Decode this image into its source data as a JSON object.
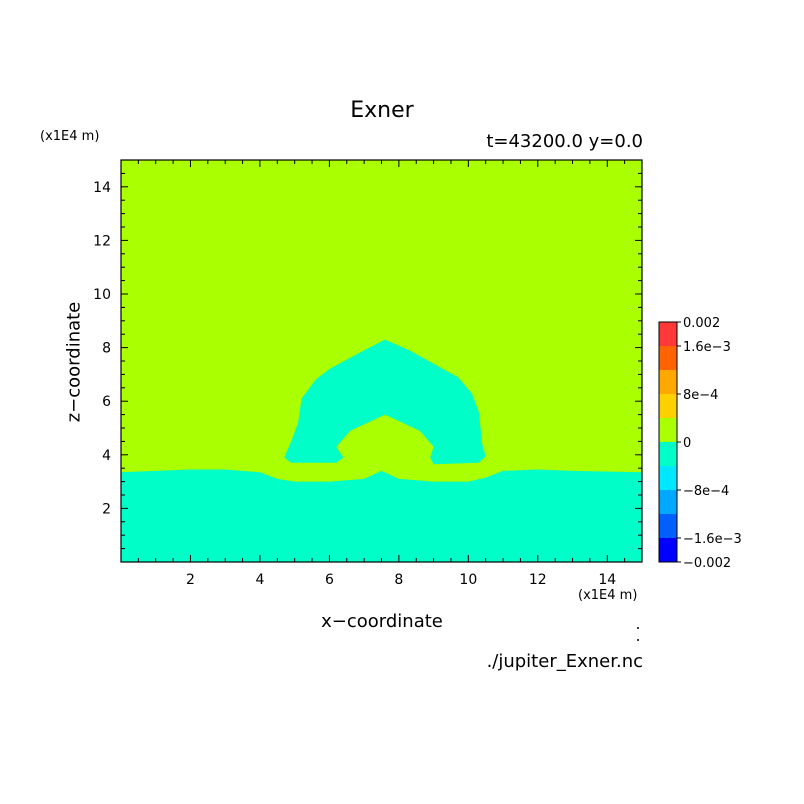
{
  "chart_data": {
    "type": "heatmap",
    "title": "Exner",
    "info": "t=43200.0  y=0.0",
    "xlabel": "x−coordinate",
    "ylabel": "z−coordinate",
    "x_unit": "(x1E4 m)",
    "y_unit": "(x1E4 m)",
    "footer": "./jupiter_Exner.nc",
    "xlim": [
      0,
      15
    ],
    "ylim": [
      0,
      15
    ],
    "xticks": [
      "2",
      "4",
      "6",
      "8",
      "10",
      "12",
      "14"
    ],
    "yticks": [
      "2",
      "4",
      "6",
      "8",
      "10",
      "12",
      "14"
    ],
    "colorbar": {
      "levels": [
        -0.002,
        -0.0016,
        -0.0012,
        -0.0008,
        -0.0004,
        0,
        0.0004,
        0.0008,
        0.0012,
        0.0016,
        0.002
      ],
      "colors": [
        "#0000a8",
        "#0000ff",
        "#0060ff",
        "#00a8ff",
        "#00e8ff",
        "#00ffc8",
        "#aaff00",
        "#ffd000",
        "#ffa800",
        "#ff6400",
        "#ff3838"
      ],
      "labels": [
        {
          "value": 0.002,
          "text": "0.002"
        },
        {
          "value": 0.0016,
          "text": "1.6e−3"
        },
        {
          "value": 0.0008,
          "text": "8e−4"
        },
        {
          "value": 0,
          "text": "0"
        },
        {
          "value": -0.0008,
          "text": "−8e−4"
        },
        {
          "value": -0.0016,
          "text": "−1.6e−3"
        },
        {
          "value": -0.002,
          "text": "−0.002"
        }
      ]
    },
    "field": {
      "background_color": "#aaff00",
      "region_color": "#00ffc8",
      "lower_layer_top": [
        [
          0,
          3.35
        ],
        [
          2,
          3.45
        ],
        [
          3,
          3.45
        ],
        [
          4,
          3.35
        ],
        [
          4.5,
          3.1
        ],
        [
          5,
          3.0
        ],
        [
          6,
          3.0
        ],
        [
          7,
          3.1
        ],
        [
          7.5,
          3.4
        ],
        [
          8,
          3.1
        ],
        [
          9,
          3.0
        ],
        [
          10,
          3.0
        ],
        [
          10.5,
          3.15
        ],
        [
          11,
          3.4
        ],
        [
          12,
          3.45
        ],
        [
          13,
          3.4
        ],
        [
          15,
          3.35
        ]
      ],
      "bubble_outline": [
        [
          4.7,
          3.9
        ],
        [
          4.9,
          4.5
        ],
        [
          5.1,
          5.2
        ],
        [
          5.2,
          6.1
        ],
        [
          5.6,
          6.8
        ],
        [
          6.0,
          7.2
        ],
        [
          7.0,
          7.9
        ],
        [
          7.6,
          8.3
        ],
        [
          8.3,
          7.9
        ],
        [
          9.0,
          7.4
        ],
        [
          9.7,
          6.9
        ],
        [
          10.1,
          6.3
        ],
        [
          10.3,
          5.6
        ],
        [
          10.4,
          4.4
        ],
        [
          10.5,
          3.95
        ],
        [
          10.3,
          3.7
        ],
        [
          9.0,
          3.65
        ],
        [
          8.9,
          3.9
        ],
        [
          9.0,
          4.3
        ],
        [
          8.6,
          4.9
        ],
        [
          7.6,
          5.5
        ],
        [
          6.6,
          4.9
        ],
        [
          6.2,
          4.3
        ],
        [
          6.4,
          3.9
        ],
        [
          6.2,
          3.7
        ],
        [
          4.9,
          3.7
        ]
      ]
    }
  }
}
